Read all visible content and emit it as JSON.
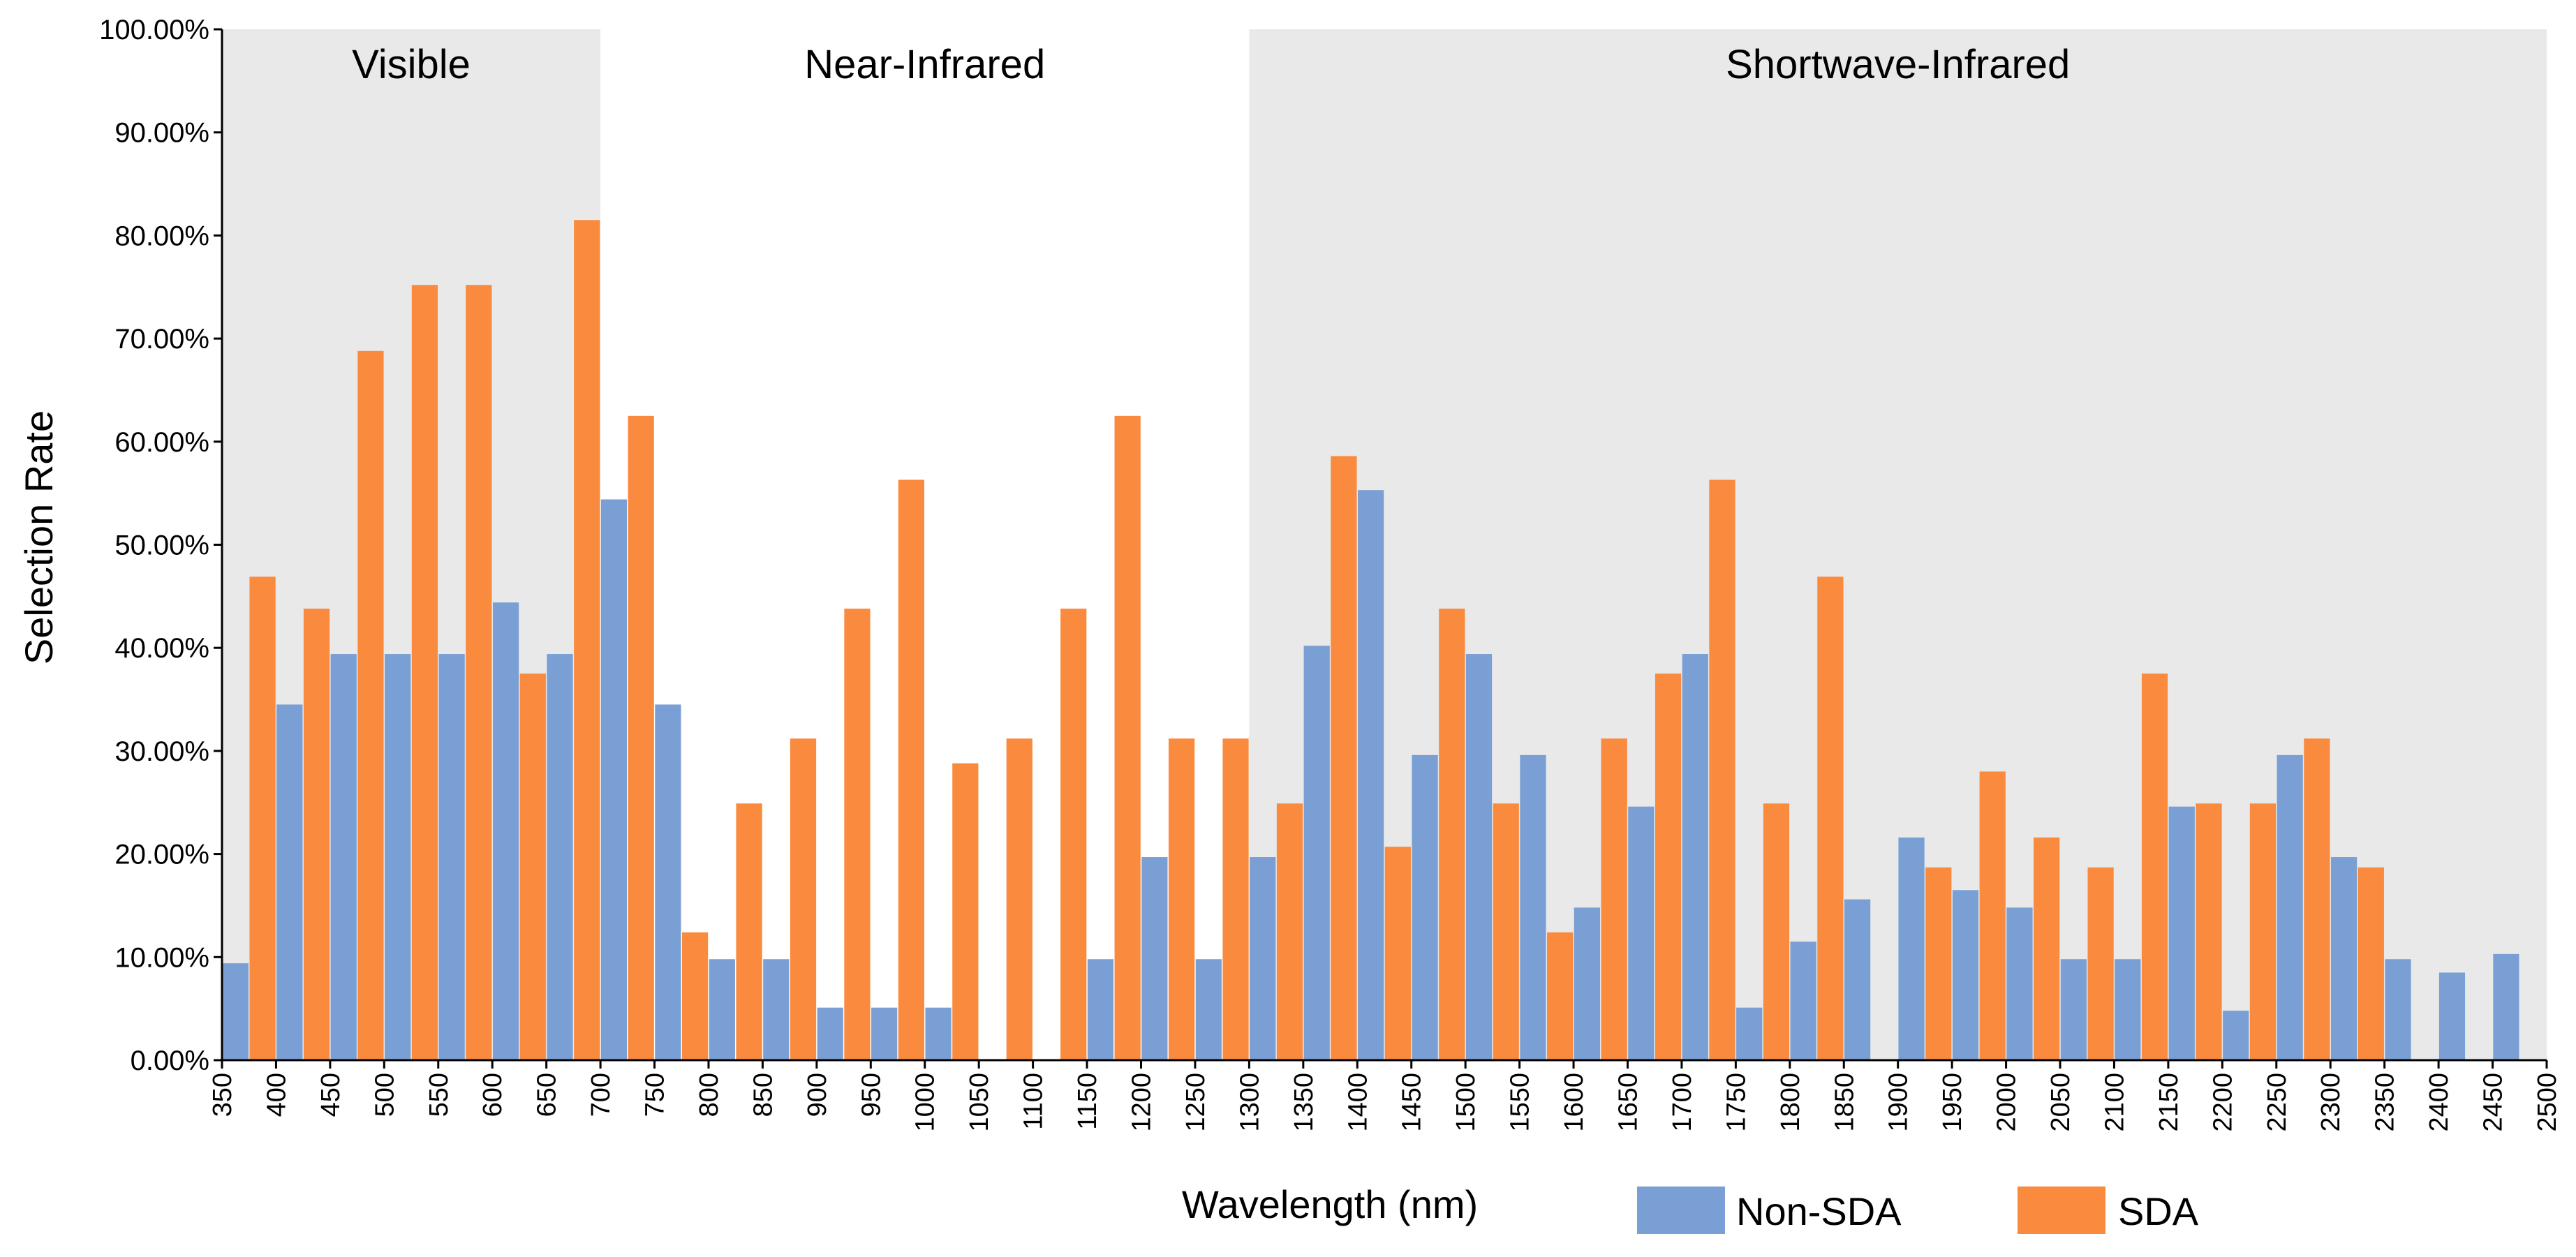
{
  "chart_data": {
    "type": "bar",
    "title": "",
    "xlabel": "Wavelength (nm)",
    "ylabel": "Selection Rate",
    "ylim": [
      0,
      100
    ],
    "xlim": [
      350,
      2500
    ],
    "grid": false,
    "legend_position": "bottom-right",
    "y_ticks": [
      "0.00%",
      "10.00%",
      "20.00%",
      "30.00%",
      "40.00%",
      "50.00%",
      "60.00%",
      "70.00%",
      "80.00%",
      "90.00%",
      "100.00%"
    ],
    "x_ticks": [
      "350",
      "400",
      "450",
      "500",
      "550",
      "600",
      "650",
      "700",
      "750",
      "800",
      "850",
      "900",
      "950",
      "1000",
      "1050",
      "1100",
      "1150",
      "1200",
      "1250",
      "1300",
      "1350",
      "1400",
      "1450",
      "1500",
      "1550",
      "1600",
      "1650",
      "1700",
      "1750",
      "1800",
      "1850",
      "1900",
      "1950",
      "2000",
      "2050",
      "2100",
      "2150",
      "2200",
      "2250",
      "2300",
      "2350",
      "2400",
      "2450",
      "2500"
    ],
    "regions": [
      {
        "label": "Visible",
        "from": 350,
        "to": 700,
        "shaded": true
      },
      {
        "label": "Near-Infrared",
        "from": 700,
        "to": 1300,
        "shaded": false
      },
      {
        "label": "Shortwave-Infrared",
        "from": 1300,
        "to": 2500,
        "shaded": true
      }
    ],
    "categories": [
      375,
      425,
      475,
      525,
      575,
      625,
      675,
      725,
      775,
      825,
      875,
      925,
      975,
      1025,
      1075,
      1125,
      1175,
      1225,
      1275,
      1325,
      1375,
      1425,
      1475,
      1525,
      1575,
      1625,
      1675,
      1725,
      1775,
      1825,
      1875,
      1925,
      1975,
      2025,
      2075,
      2125,
      2175,
      2225,
      2275,
      2325,
      2375,
      2425,
      2475
    ],
    "series": [
      {
        "name": "Non-SDA",
        "color": "#7a9fd4",
        "values": [
          9.4,
          34.5,
          39.4,
          39.4,
          39.4,
          44.4,
          39.4,
          54.4,
          34.5,
          9.8,
          9.8,
          5.1,
          5.1,
          5.1,
          0,
          0,
          9.8,
          19.7,
          9.8,
          19.7,
          40.2,
          55.3,
          29.6,
          39.4,
          29.6,
          14.8,
          24.6,
          39.4,
          5.1,
          11.5,
          15.6,
          21.6,
          16.5,
          14.8,
          9.8,
          9.8,
          24.6,
          4.8,
          29.6,
          19.7,
          9.8,
          8.5,
          10.3
        ]
      },
      {
        "name": "SDA",
        "color": "#f98a3e",
        "values": [
          46.9,
          43.8,
          68.8,
          75.2,
          75.2,
          37.5,
          81.5,
          62.5,
          12.4,
          24.9,
          31.2,
          43.8,
          56.3,
          28.8,
          31.2,
          43.8,
          62.5,
          31.2,
          31.2,
          24.9,
          58.6,
          20.7,
          43.8,
          24.9,
          12.4,
          31.2,
          37.5,
          56.3,
          24.9,
          46.9,
          0,
          18.7,
          28.0,
          21.6,
          18.7,
          37.5,
          24.9,
          24.9,
          31.2,
          18.7,
          0,
          0,
          0
        ]
      }
    ]
  }
}
